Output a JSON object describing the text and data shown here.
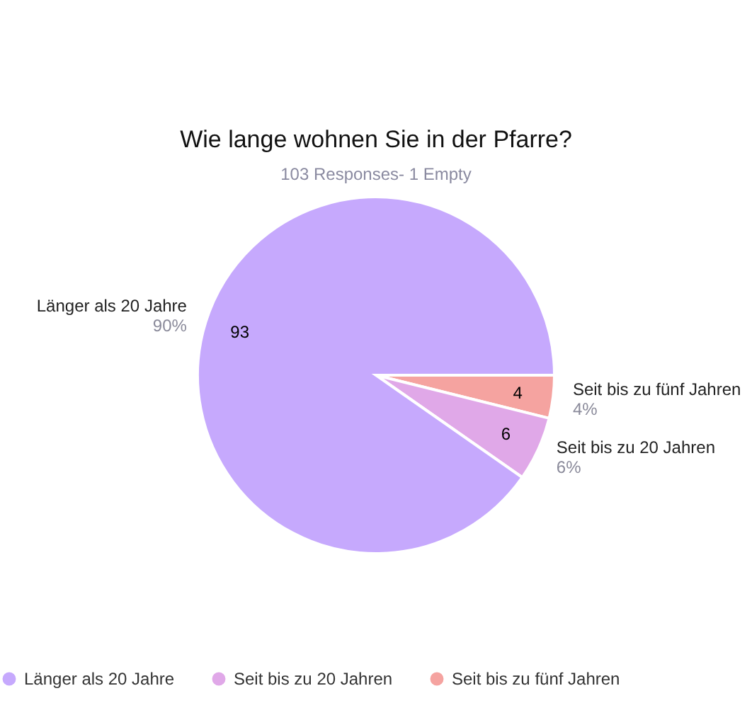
{
  "chart_data": {
    "type": "pie",
    "title": "Wie lange wohnen Sie in der Pfarre?",
    "subtitle": "103 Responses- 1 Empty",
    "categories": [
      "Länger als 20 Jahre",
      "Seit bis zu 20 Jahren",
      "Seit bis zu fünf Jahren"
    ],
    "values": [
      93,
      6,
      4
    ],
    "colors": [
      "#c6a9fd",
      "#e0a8e8",
      "#f5a3a0"
    ],
    "data_labels": true,
    "annotations": [
      "90%",
      "6%",
      "4%"
    ],
    "legend": "bottom"
  }
}
